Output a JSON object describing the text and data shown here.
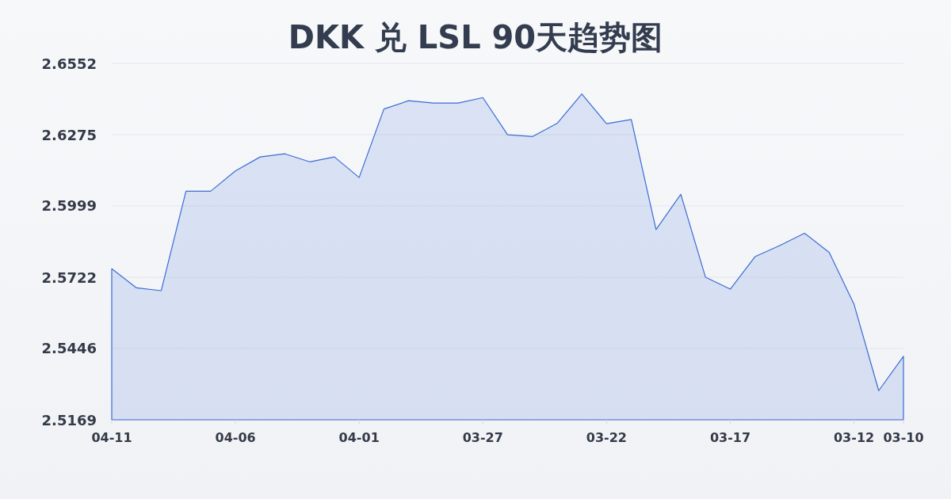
{
  "chart_data": {
    "type": "area",
    "title": "DKK 兑 LSL 90天趋势图",
    "categories": [
      "04-11",
      null,
      null,
      null,
      null,
      "04-06",
      null,
      null,
      null,
      null,
      "04-01",
      null,
      null,
      null,
      null,
      "03-27",
      null,
      null,
      null,
      null,
      "03-22",
      null,
      null,
      null,
      null,
      "03-17",
      null,
      null,
      null,
      null,
      "03-12",
      null,
      "03-10"
    ],
    "values": [
      2.5755,
      2.5681,
      2.567,
      2.6056,
      2.6056,
      2.6135,
      2.6189,
      2.6201,
      2.617,
      2.6189,
      2.6109,
      2.6375,
      2.6407,
      2.6398,
      2.6398,
      2.6419,
      2.6275,
      2.6268,
      2.6319,
      2.6433,
      2.6318,
      2.6334,
      2.5907,
      2.6044,
      2.5722,
      2.5676,
      2.5802,
      2.5845,
      2.5893,
      2.5818,
      2.5618,
      2.5282,
      2.5415
    ],
    "color": "#3b6cd4",
    "ylim": [
      2.5169,
      2.6552
    ],
    "yticks": [
      2.5169,
      2.5446,
      2.5722,
      2.5999,
      2.6275,
      2.6552
    ],
    "grid": "y"
  }
}
